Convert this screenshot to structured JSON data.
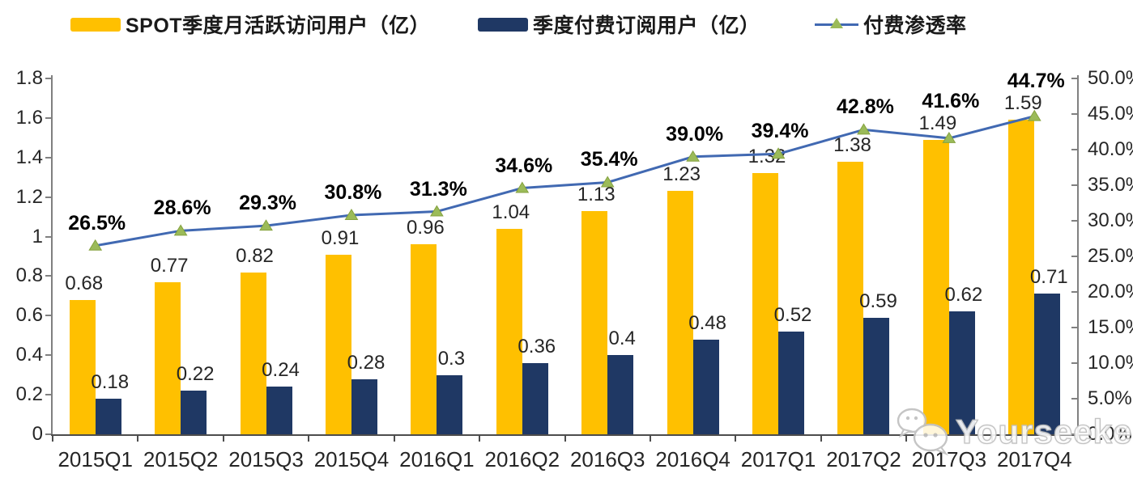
{
  "legend": {
    "items": [
      {
        "label": "SPOT季度月活跃访问用户（亿）",
        "type": "bar",
        "color": "#FFC000"
      },
      {
        "label": "季度付费订阅用户（亿）",
        "type": "bar",
        "color": "#1F3864"
      },
      {
        "label": "付费渗透率",
        "type": "line",
        "color": "#4169B2",
        "marker_color": "#9BBB59"
      }
    ]
  },
  "watermark": {
    "text": "Yourseeker",
    "icon": "wechat-bubbles-icon"
  },
  "chart_data": {
    "type": "bar+line",
    "title": "",
    "categories": [
      "2015Q1",
      "2015Q2",
      "2015Q3",
      "2015Q4",
      "2016Q1",
      "2016Q2",
      "2016Q3",
      "2016Q4",
      "2017Q1",
      "2017Q2",
      "2017Q3",
      "2017Q4"
    ],
    "series": [
      {
        "name": "SPOT季度月活跃访问用户（亿）",
        "type": "bar",
        "axis": "left",
        "color": "#FFC000",
        "values": [
          0.68,
          0.77,
          0.82,
          0.91,
          0.96,
          1.04,
          1.13,
          1.23,
          1.32,
          1.38,
          1.49,
          1.59
        ],
        "labels": [
          "0.68",
          "0.77",
          "0.82",
          "0.91",
          "0.96",
          "1.04",
          "1.13",
          "1.23",
          "1.32",
          "1.38",
          "1.49",
          "1.59"
        ]
      },
      {
        "name": "季度付费订阅用户（亿）",
        "type": "bar",
        "axis": "left",
        "color": "#1F3864",
        "values": [
          0.18,
          0.22,
          0.24,
          0.28,
          0.3,
          0.36,
          0.4,
          0.48,
          0.52,
          0.59,
          0.62,
          0.71
        ],
        "labels": [
          "0.18",
          "0.22",
          "0.24",
          "0.28",
          "0.3",
          "0.36",
          "0.4",
          "0.48",
          "0.52",
          "0.59",
          "0.62",
          "0.71"
        ]
      },
      {
        "name": "付费渗透率",
        "type": "line",
        "axis": "right",
        "color": "#4169B2",
        "marker": "triangle",
        "marker_color": "#9BBB59",
        "values": [
          26.5,
          28.6,
          29.3,
          30.8,
          31.3,
          34.6,
          35.4,
          39.0,
          39.4,
          42.8,
          41.6,
          44.7
        ],
        "labels": [
          "26.5%",
          "28.6%",
          "29.3%",
          "30.8%",
          "31.3%",
          "34.6%",
          "35.4%",
          "39.0%",
          "39.4%",
          "42.8%",
          "41.6%",
          "44.7%"
        ]
      }
    ],
    "left_axis": {
      "min": 0,
      "max": 1.8,
      "step": 0.2,
      "ticks": [
        "0",
        "0.2",
        "0.4",
        "0.6",
        "0.8",
        "1",
        "1.2",
        "1.4",
        "1.6",
        "1.8"
      ]
    },
    "right_axis": {
      "min": 0,
      "max": 50,
      "step": 5,
      "ticks": [
        "0.0%",
        "5.0%",
        "10.0%",
        "15.0%",
        "20.0%",
        "25.0%",
        "30.0%",
        "35.0%",
        "40.0%",
        "45.0%",
        "50.0%"
      ]
    },
    "grid": false,
    "legend_position": "top"
  }
}
